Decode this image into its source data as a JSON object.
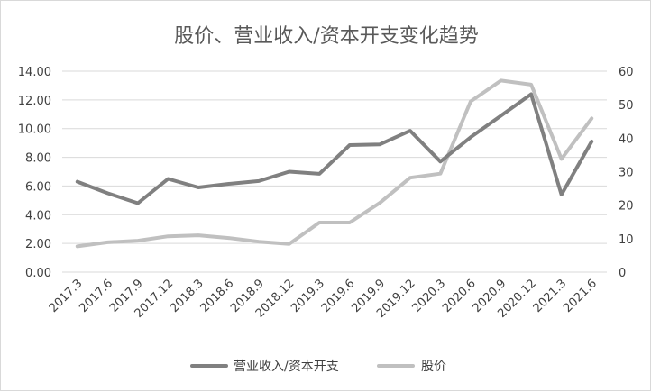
{
  "chart_data": {
    "type": "line",
    "title": "股价、营业收入/资本开支变化趋势",
    "categories": [
      "2017.3",
      "2017.6",
      "2017.9",
      "2017.12",
      "2018.3",
      "2018.6",
      "2018.9",
      "2018.12",
      "2019.3",
      "2019.6",
      "2019.9",
      "2019.12",
      "2020.3",
      "2020.6",
      "2020.9",
      "2020.12",
      "2021.3",
      "2021.6"
    ],
    "y_left": {
      "min": 0,
      "max": 14,
      "step": 2,
      "tick_labels": [
        "0.00",
        "2.00",
        "4.00",
        "6.00",
        "8.00",
        "10.00",
        "12.00",
        "14.00"
      ]
    },
    "y_right": {
      "min": 0,
      "max": 60,
      "step": 10,
      "tick_labels": [
        "0",
        "10",
        "20",
        "30",
        "40",
        "50",
        "60"
      ]
    },
    "series": [
      {
        "name": "营业收入/资本开支",
        "axis": "left",
        "color": "#808080",
        "values": [
          6.3,
          5.5,
          4.8,
          6.5,
          5.9,
          6.15,
          6.35,
          7.0,
          6.85,
          8.85,
          8.9,
          9.85,
          7.7,
          9.4,
          10.9,
          12.4,
          5.4,
          9.1
        ]
      },
      {
        "name": "股价",
        "axis": "right",
        "color": "#c0c0c0",
        "values": [
          7.7,
          8.9,
          9.4,
          10.7,
          11.0,
          10.2,
          9.1,
          8.4,
          14.8,
          14.8,
          20.7,
          28.2,
          29.4,
          51.0,
          57.2,
          56.0,
          33.8,
          45.9
        ]
      }
    ],
    "grid": true,
    "legend_position": "bottom"
  }
}
